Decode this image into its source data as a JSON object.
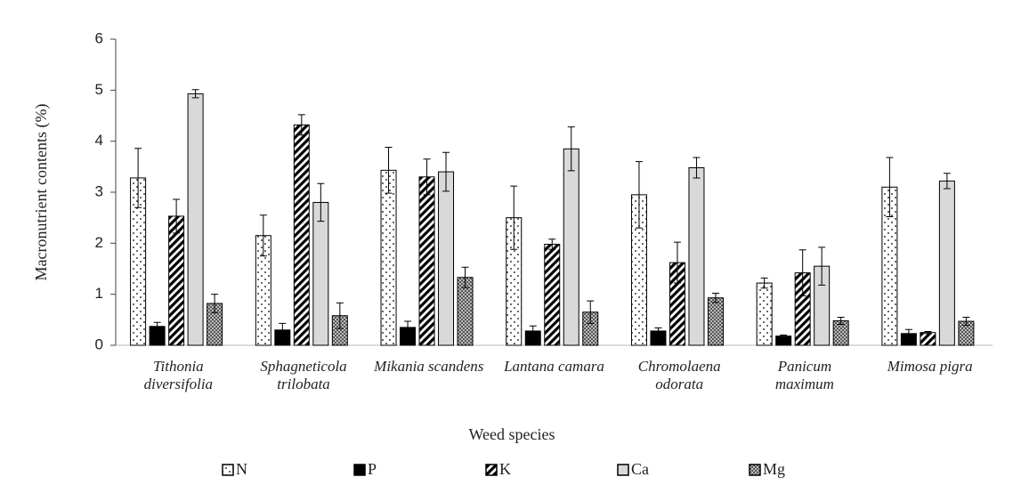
{
  "chart_data": {
    "type": "bar",
    "x_label": "Weed species",
    "y_label": "Macronutrient  contents (%)",
    "categories": [
      "Tithonia diversifolia",
      "Sphagneticola trilobata",
      "Mikania scandens",
      "Lantana camara",
      "Chromolaena odorata",
      "Panicum maximum",
      "Mimosa pigra"
    ],
    "series": [
      {
        "name": "N",
        "color": "#ffffff",
        "pattern": "dots",
        "values": [
          3.28,
          2.15,
          3.43,
          2.5,
          2.95,
          1.22,
          3.1
        ],
        "errors": [
          0.58,
          0.4,
          0.45,
          0.62,
          0.65,
          0.1,
          0.58
        ]
      },
      {
        "name": "P",
        "color": "#000000",
        "values": [
          0.37,
          0.3,
          0.35,
          0.28,
          0.28,
          0.18,
          0.23
        ],
        "errors": [
          0.08,
          0.13,
          0.12,
          0.1,
          0.06,
          0.02,
          0.08
        ]
      },
      {
        "name": "K",
        "color": "#ffffff",
        "pattern": "stripes",
        "values": [
          2.53,
          4.32,
          3.3,
          1.98,
          1.62,
          1.42,
          0.25
        ],
        "errors": [
          0.33,
          0.2,
          0.35,
          0.1,
          0.4,
          0.45,
          0.02
        ]
      },
      {
        "name": "Ca",
        "color": "#d9d9d9",
        "values": [
          4.93,
          2.8,
          3.4,
          3.85,
          3.48,
          1.55,
          3.22
        ],
        "errors": [
          0.08,
          0.37,
          0.38,
          0.43,
          0.2,
          0.37,
          0.15
        ]
      },
      {
        "name": "Mg",
        "color": "#a6a6a6",
        "pattern": "checks",
        "values": [
          0.82,
          0.58,
          1.33,
          0.65,
          0.93,
          0.48,
          0.47
        ],
        "errors": [
          0.18,
          0.25,
          0.2,
          0.22,
          0.09,
          0.07,
          0.08
        ]
      }
    ],
    "ylim": [
      0,
      6
    ],
    "yticks": [
      0,
      1,
      2,
      3,
      4,
      5,
      6
    ],
    "grid": false,
    "legend": "bottom"
  }
}
